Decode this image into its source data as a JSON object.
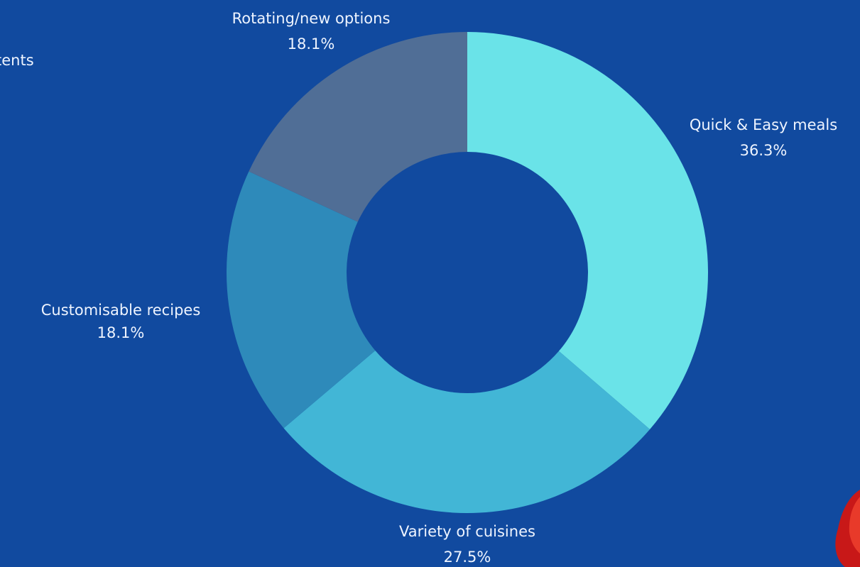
{
  "chart_data": {
    "type": "pie",
    "annotations": [
      "tents"
    ],
    "categories": [
      "Quick & Easy meals",
      "Variety of cuisines",
      "Customisable recipes",
      "Rotating/new options"
    ],
    "values": [
      36.3,
      27.5,
      18.1,
      18.1
    ],
    "value_labels": [
      "36.3%",
      "27.5%",
      "18.1%",
      "18.1%"
    ],
    "colors": [
      "#6ae3e8",
      "#42b6d6",
      "#2e8aba",
      "#506e96"
    ],
    "donut": true
  }
}
